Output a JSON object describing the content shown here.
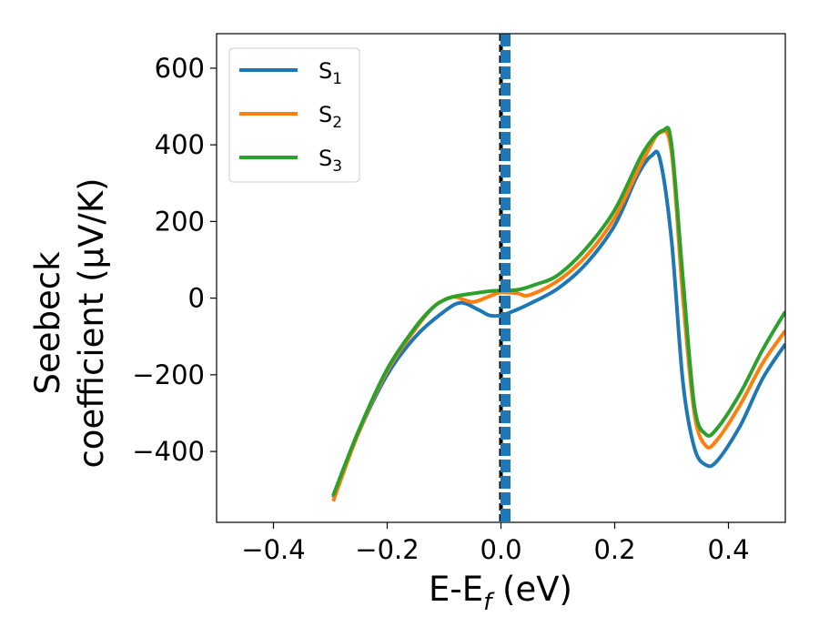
{
  "chart_data": {
    "type": "line",
    "xlabel_main": "E-E",
    "xlabel_sub": "f",
    "xlabel_unit": " (eV)",
    "ylabel_line1": "Seebeck",
    "ylabel_line2": "coefficient  (μV/K)",
    "xlim": [
      -0.5,
      0.5
    ],
    "ylim": [
      -585,
      690
    ],
    "xticks": [
      -0.4,
      -0.2,
      0.0,
      0.2,
      0.4
    ],
    "xtick_labels": [
      "−0.4",
      "−0.2",
      "0.0",
      "0.2",
      "0.4"
    ],
    "yticks": [
      600,
      400,
      200,
      0,
      -200,
      -400
    ],
    "ytick_labels": [
      "600",
      "400",
      "200",
      "0",
      "−200",
      "−400"
    ],
    "grid": false,
    "legend_position": "top-left",
    "vline_x": 0.0,
    "series": [
      {
        "name": "S",
        "sub": "1",
        "color": "#1f77b4",
        "points": [
          [
            -0.295,
            -520
          ],
          [
            -0.25,
            -350
          ],
          [
            -0.2,
            -200
          ],
          [
            -0.15,
            -100
          ],
          [
            -0.1,
            -35
          ],
          [
            -0.07,
            -12
          ],
          [
            -0.04,
            -30
          ],
          [
            -0.02,
            -45
          ],
          [
            0.0,
            -45
          ],
          [
            0.02,
            -35
          ],
          [
            0.05,
            -15
          ],
          [
            0.1,
            25
          ],
          [
            0.15,
            90
          ],
          [
            0.2,
            190
          ],
          [
            0.24,
            320
          ],
          [
            0.265,
            372
          ],
          [
            0.28,
            360
          ],
          [
            0.3,
            150
          ],
          [
            0.32,
            -220
          ],
          [
            0.34,
            -390
          ],
          [
            0.36,
            -435
          ],
          [
            0.38,
            -425
          ],
          [
            0.42,
            -335
          ],
          [
            0.46,
            -210
          ],
          [
            0.5,
            -120
          ]
        ]
      },
      {
        "name": "S",
        "sub": "2",
        "color": "#ff7f0e",
        "points": [
          [
            -0.295,
            -530
          ],
          [
            -0.25,
            -350
          ],
          [
            -0.2,
            -190
          ],
          [
            -0.15,
            -80
          ],
          [
            -0.12,
            -25
          ],
          [
            -0.1,
            -5
          ],
          [
            -0.08,
            3
          ],
          [
            -0.05,
            -10
          ],
          [
            -0.02,
            5
          ],
          [
            0.0,
            15
          ],
          [
            0.03,
            12
          ],
          [
            0.05,
            8
          ],
          [
            0.1,
            45
          ],
          [
            0.15,
            110
          ],
          [
            0.2,
            210
          ],
          [
            0.25,
            360
          ],
          [
            0.28,
            432
          ],
          [
            0.3,
            380
          ],
          [
            0.32,
            0
          ],
          [
            0.34,
            -300
          ],
          [
            0.36,
            -385
          ],
          [
            0.38,
            -370
          ],
          [
            0.42,
            -280
          ],
          [
            0.46,
            -170
          ],
          [
            0.5,
            -85
          ]
        ]
      },
      {
        "name": "S",
        "sub": "3",
        "color": "#2ca02c",
        "points": [
          [
            -0.295,
            -515
          ],
          [
            -0.25,
            -345
          ],
          [
            -0.2,
            -185
          ],
          [
            -0.15,
            -75
          ],
          [
            -0.12,
            -25
          ],
          [
            -0.1,
            -5
          ],
          [
            -0.08,
            5
          ],
          [
            -0.05,
            12
          ],
          [
            -0.02,
            18
          ],
          [
            0.0,
            20
          ],
          [
            0.03,
            22
          ],
          [
            0.06,
            35
          ],
          [
            0.1,
            60
          ],
          [
            0.15,
            130
          ],
          [
            0.2,
            230
          ],
          [
            0.25,
            380
          ],
          [
            0.285,
            438
          ],
          [
            0.3,
            400
          ],
          [
            0.32,
            50
          ],
          [
            0.34,
            -280
          ],
          [
            0.36,
            -355
          ],
          [
            0.38,
            -340
          ],
          [
            0.42,
            -250
          ],
          [
            0.46,
            -135
          ],
          [
            0.5,
            -35
          ]
        ]
      }
    ]
  }
}
